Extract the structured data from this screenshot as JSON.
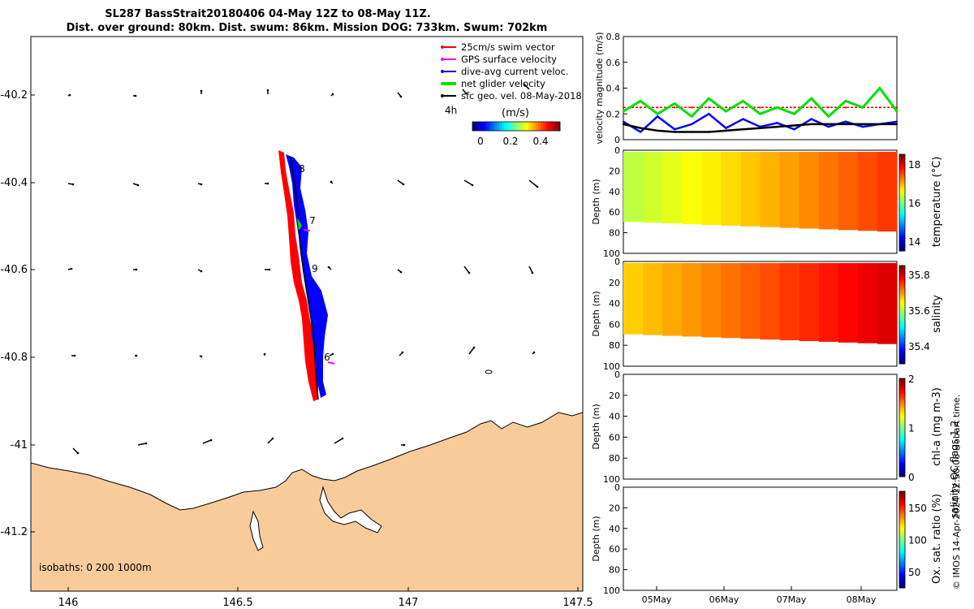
{
  "title": {
    "line1": "SL287 BassStrait20180406 04-May 12Z to 08-May 11Z.",
    "line2": "Dist. over ground: 80km. Dist. swum: 86km. Mission DOG: 733km. Swum: 702km"
  },
  "colors": {
    "land": "#f8cb9b",
    "swim_vector": "#ff0000",
    "gps_velocity": "#ff00ff",
    "current": "#0000ff",
    "net_velocity": "#00e000",
    "geostrophic": "#000000"
  },
  "map": {
    "x_ticks": [
      "146",
      "146.5",
      "147",
      "147.5"
    ],
    "y_ticks": [
      "-40.2",
      "-40.4",
      "-40.6",
      "-40.8",
      "-41",
      "-41.2"
    ],
    "legend": [
      "25cm/s swim vector",
      "GPS surface velocity",
      "dive-avg current veloc.",
      "net glider velocity",
      "sfc geo. vel. 08-May-2018"
    ],
    "time_tag": "4h",
    "colorbar": {
      "label": "(m/s)",
      "ticks": [
        "0",
        "0.2",
        "0.4"
      ]
    },
    "isobaths": "isobaths: 0   200  1000m",
    "day_labels": [
      "8",
      "7",
      "9",
      "6"
    ]
  },
  "chart_data": [
    {
      "type": "line",
      "ylabel": "velocity magnitude (m/s)",
      "ylim": [
        0,
        0.8
      ],
      "y_ticks": [
        "0",
        "0.2",
        "0.4",
        "0.6",
        "0.8"
      ],
      "x": [
        0,
        0.25,
        0.5,
        0.75,
        1,
        1.25,
        1.5,
        1.75,
        2,
        2.25,
        2.5,
        2.75,
        3,
        3.25,
        3.5,
        3.75,
        4.0
      ],
      "series": [
        {
          "color": "swim",
          "values": [
            0.25,
            0.25,
            0.25,
            0.25,
            0.25,
            0.25,
            0.25,
            0.25,
            0.25,
            0.25,
            0.25,
            0.25,
            0.25,
            0.25,
            0.25,
            0.25,
            0.25
          ]
        },
        {
          "color": "net",
          "values": [
            0.22,
            0.3,
            0.2,
            0.28,
            0.18,
            0.32,
            0.22,
            0.3,
            0.2,
            0.25,
            0.2,
            0.32,
            0.18,
            0.3,
            0.25,
            0.4,
            0.22
          ]
        },
        {
          "color": "current",
          "values": [
            0.14,
            0.06,
            0.18,
            0.08,
            0.12,
            0.2,
            0.09,
            0.16,
            0.1,
            0.13,
            0.08,
            0.16,
            0.1,
            0.14,
            0.1,
            0.12,
            0.14
          ]
        },
        {
          "color": "geo",
          "values": [
            0.12,
            0.09,
            0.07,
            0.06,
            0.06,
            0.06,
            0.07,
            0.08,
            0.09,
            0.1,
            0.11,
            0.12,
            0.12,
            0.12,
            0.12,
            0.12,
            0.12
          ]
        }
      ]
    },
    {
      "type": "heatmap",
      "ylabel": "Depth (m)",
      "y_ticks": [
        "0",
        "20",
        "40",
        "60",
        "80",
        "100"
      ],
      "colorbar_label": "temperature (°C)",
      "colorbar_ticks": [
        "18",
        "16",
        "14"
      ],
      "range": [
        13.5,
        18.5
      ],
      "values": [
        16.3,
        16.4,
        16.5,
        16.6,
        16.7,
        16.8,
        16.9,
        17.0,
        17.1,
        17.2,
        17.3,
        17.4,
        17.5,
        17.6
      ]
    },
    {
      "type": "heatmap",
      "ylabel": "Depth (m)",
      "y_ticks": [
        "0",
        "20",
        "40",
        "60",
        "80",
        "100"
      ],
      "colorbar_label": "salinity",
      "colorbar_ticks": [
        "35.8",
        "35.6",
        "35.4"
      ],
      "range": [
        35.3,
        35.85
      ],
      "values": [
        35.67,
        35.68,
        35.69,
        35.7,
        35.71,
        35.72,
        35.73,
        35.74,
        35.75,
        35.76,
        35.77,
        35.78,
        35.79,
        35.8
      ]
    },
    {
      "type": "heatmap",
      "ylabel": "Depth (m)",
      "y_ticks": [
        "0",
        "20",
        "40",
        "60",
        "80",
        "100"
      ],
      "colorbar_label": "chl-a (mg m-3)",
      "colorbar_ticks": [
        "2",
        "1",
        "0"
      ],
      "range": [
        0,
        2
      ],
      "values": []
    },
    {
      "type": "heatmap",
      "ylabel": "Depth (m)",
      "y_ticks": [
        "0",
        "20",
        "40",
        "60",
        "80",
        "100"
      ],
      "colorbar_label": "Ox. sat. ratio (%)",
      "colorbar_ticks": [
        "150",
        "100",
        "50"
      ],
      "range": [
        25,
        175
      ],
      "values": []
    }
  ],
  "time_axis": {
    "ticks": [
      "05May",
      "06May",
      "07May",
      "08May"
    ]
  },
  "footer": {
    "qc": "salinity QC flags 1  2",
    "credit": "© IMOS 14-Apr-2024 22:50:08 Hobart time."
  }
}
